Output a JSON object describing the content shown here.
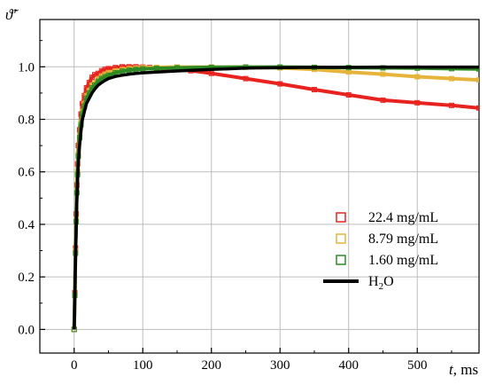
{
  "chart_data": {
    "type": "scatter",
    "title": "",
    "ylabel": "ϑ̃′",
    "xlabel_var": "t",
    "xlabel_unit": ", ms",
    "xlim": [
      -50,
      590
    ],
    "ylim": [
      -0.09,
      1.18
    ],
    "xticks": [
      0,
      100,
      200,
      300,
      400,
      500
    ],
    "xtick_labels": [
      "0",
      "100",
      "200",
      "300",
      "400",
      "500"
    ],
    "yticks": [
      0.0,
      0.2,
      0.4,
      0.6,
      0.8,
      1.0
    ],
    "ytick_labels": [
      "0.0",
      "0.2",
      "0.4",
      "0.6",
      "0.8",
      "1.0"
    ],
    "grid": true,
    "legend_position": "lower-right",
    "series": [
      {
        "name": "22.4 mg/mL",
        "color": "#e8231f",
        "marker": "open-square",
        "fit_line": true,
        "x": [
          0,
          1,
          2,
          3,
          4,
          5,
          6,
          8,
          10,
          12,
          15,
          18,
          22,
          26,
          30,
          35,
          40,
          45,
          50,
          60,
          70,
          80,
          90,
          100,
          110,
          120,
          150,
          170,
          200,
          250,
          300,
          350,
          400,
          450,
          500,
          550,
          590
        ],
        "y": [
          0.0,
          0.14,
          0.31,
          0.44,
          0.55,
          0.63,
          0.7,
          0.76,
          0.82,
          0.86,
          0.89,
          0.92,
          0.94,
          0.96,
          0.97,
          0.975,
          0.985,
          0.99,
          0.993,
          0.997,
          1.0,
          1.0,
          1.0,
          0.999,
          0.997,
          0.994,
          0.99,
          0.985,
          0.975,
          0.955,
          0.935,
          0.913,
          0.893,
          0.873,
          0.863,
          0.853,
          0.843
        ]
      },
      {
        "name": "8.79 mg/mL",
        "color": "#e6b43a",
        "marker": "open-square",
        "fit_line": true,
        "x": [
          0,
          1,
          2,
          3,
          4,
          5,
          6,
          8,
          10,
          12,
          15,
          18,
          22,
          26,
          30,
          35,
          40,
          45,
          50,
          60,
          70,
          80,
          90,
          100,
          120,
          150,
          200,
          250,
          300,
          350,
          400,
          450,
          500,
          550,
          590
        ],
        "y": [
          0.0,
          0.13,
          0.3,
          0.42,
          0.53,
          0.6,
          0.67,
          0.74,
          0.79,
          0.83,
          0.86,
          0.89,
          0.91,
          0.93,
          0.94,
          0.955,
          0.965,
          0.972,
          0.978,
          0.985,
          0.99,
          0.993,
          0.995,
          0.997,
          0.998,
          0.999,
          0.999,
          0.998,
          0.996,
          0.99,
          0.98,
          0.972,
          0.962,
          0.955,
          0.95
        ]
      },
      {
        "name": "1.60 mg/mL",
        "color": "#2e8b24",
        "marker": "open-square",
        "fit_line": true,
        "x": [
          0,
          1,
          2,
          3,
          4,
          5,
          6,
          8,
          10,
          12,
          15,
          18,
          22,
          26,
          30,
          35,
          40,
          45,
          50,
          60,
          70,
          80,
          90,
          100,
          120,
          150,
          200,
          250,
          300,
          350,
          400,
          450,
          500,
          550,
          590
        ],
        "y": [
          0.0,
          0.13,
          0.29,
          0.41,
          0.52,
          0.59,
          0.66,
          0.73,
          0.78,
          0.82,
          0.85,
          0.88,
          0.9,
          0.92,
          0.93,
          0.945,
          0.955,
          0.962,
          0.968,
          0.977,
          0.983,
          0.987,
          0.99,
          0.992,
          0.994,
          0.996,
          0.998,
          0.999,
          0.999,
          0.998,
          0.997,
          0.996,
          0.995,
          0.993,
          0.992
        ]
      },
      {
        "name": "H",
        "name_sub": "2",
        "name_suffix": "O",
        "color": "#000000",
        "marker": "none",
        "line": true,
        "x": [
          0,
          1,
          2,
          3,
          4,
          5,
          6,
          8,
          10,
          12,
          15,
          18,
          22,
          26,
          30,
          35,
          40,
          45,
          50,
          60,
          70,
          80,
          90,
          100,
          120,
          150,
          175,
          200,
          250,
          300,
          350,
          400,
          450,
          500,
          550,
          590
        ],
        "y": [
          0.0,
          0.12,
          0.27,
          0.39,
          0.49,
          0.56,
          0.63,
          0.7,
          0.755,
          0.8,
          0.83,
          0.86,
          0.88,
          0.9,
          0.915,
          0.93,
          0.94,
          0.948,
          0.955,
          0.963,
          0.968,
          0.972,
          0.975,
          0.977,
          0.98,
          0.984,
          0.987,
          0.99,
          0.995,
          0.997,
          0.998,
          0.998,
          0.999,
          0.999,
          0.999,
          0.999
        ]
      }
    ]
  }
}
